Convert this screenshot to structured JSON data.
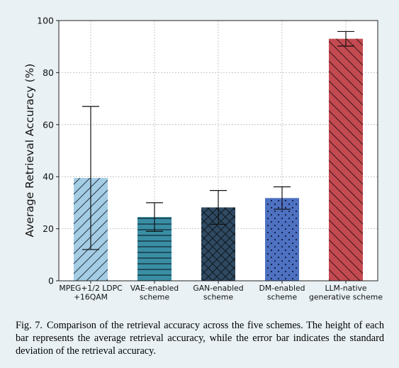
{
  "chart_data": {
    "type": "bar",
    "title": "",
    "xlabel": "",
    "ylabel": "Average Retrieval Accuracy (%)",
    "ylim": [
      0,
      100
    ],
    "yticks": [
      "0",
      "20",
      "40",
      "60",
      "80",
      "100"
    ],
    "grid": true,
    "categories": [
      [
        "MPEG+1/2 LDPC",
        "+16QAM"
      ],
      [
        "VAE-enabled",
        "scheme"
      ],
      [
        "GAN-enabled",
        "scheme"
      ],
      [
        "DM-enabled",
        "scheme"
      ],
      [
        "LLM-native",
        "generative scheme"
      ]
    ],
    "values": [
      39.5,
      24.5,
      28.2,
      31.8,
      93.0
    ],
    "error": [
      27.5,
      5.5,
      6.5,
      4.3,
      2.8
    ],
    "colors": [
      "#a4cde5",
      "#3a8ea4",
      "#2f4a62",
      "#4f71c2",
      "#c44a51"
    ],
    "patterns": [
      "diagonal",
      "horizontal",
      "crosshatch",
      "dots",
      "diagonal-back"
    ]
  },
  "caption": {
    "label": "Fig. 7.",
    "text": "Comparison of the retrieval accuracy across the five schemes. The height of each bar represents the average retrieval accuracy, while the error bar indicates the standard deviation of the retrieval accuracy."
  }
}
